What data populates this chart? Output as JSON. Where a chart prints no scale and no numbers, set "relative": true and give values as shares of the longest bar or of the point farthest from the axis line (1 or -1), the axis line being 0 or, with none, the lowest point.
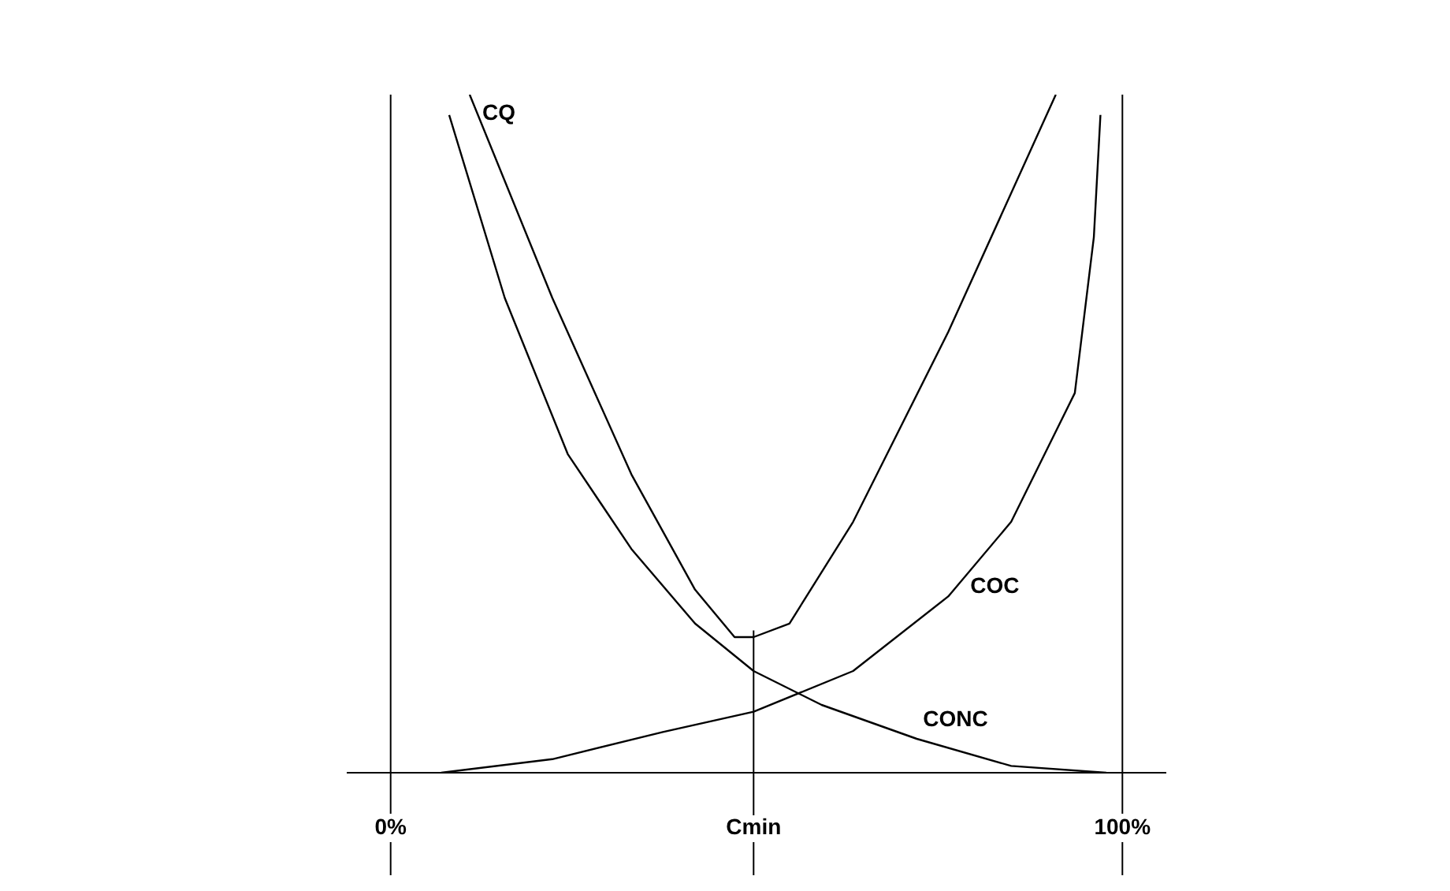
{
  "chart_data": {
    "type": "line",
    "relative": true,
    "xlim": [
      -6,
      106
    ],
    "xticks": [
      {
        "value": 0,
        "label": "0%"
      },
      {
        "value": 100,
        "label": "100%"
      }
    ],
    "grid": "x",
    "legend": false,
    "marker": "none",
    "line_style": "solid",
    "ref_lines": [
      {
        "axis": "x",
        "value": 49.6,
        "label": "Cmin"
      }
    ],
    "series": [
      {
        "name": "CQ",
        "color": "#000000",
        "x": [
          10.8,
          22.1,
          32.9,
          41.6,
          47.0,
          49.6,
          54.5,
          63.2,
          76.2,
          90.9
        ],
        "values": [
          1,
          0.7,
          0.44,
          0.27,
          0.2,
          0.2,
          0.22,
          0.37,
          0.65,
          1
        ]
      },
      {
        "name": "COC",
        "color": "#000000",
        "x": [
          6.9,
          22.1,
          37.2,
          49.6,
          63.2,
          76.2,
          84.8,
          93.5,
          96.1,
          97.0
        ],
        "values": [
          0,
          0.02,
          0.06,
          0.09,
          0.15,
          0.26,
          0.37,
          0.56,
          0.79,
          0.97
        ]
      },
      {
        "name": "CONC",
        "color": "#000000",
        "x": [
          8.0,
          15.6,
          24.2,
          32.9,
          41.6,
          49.6,
          58.9,
          71.9,
          84.8,
          97.8
        ],
        "values": [
          0.97,
          0.7,
          0.47,
          0.33,
          0.22,
          0.15,
          0.1,
          0.05,
          0.01,
          0
        ]
      }
    ]
  }
}
